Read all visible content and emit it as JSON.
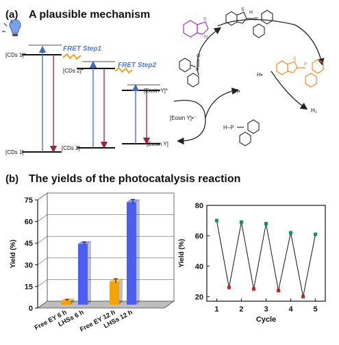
{
  "panel_a": {
    "label": "(a)",
    "title": "A plausible mechanism",
    "levels": {
      "cd1_upper": "[CDs 1]*",
      "cd1_lower": "[CDs 1]",
      "cd2_upper": "[CDs 2]*",
      "cd2_lower": "[CDs 2]",
      "ey_upper": "[Eosin Y]*",
      "ey_lower": "[Eosin Y]"
    },
    "fret1": "FRET Step1",
    "fret2": "FRET Step2",
    "cycle": {
      "eosin_radical": "[Eosin Y]•⁻",
      "h_radical_1": "H•",
      "h_radical_2": "H•",
      "h2": "H₂",
      "phosphine_oxide": "H–P",
      "p_label": "P",
      "o_label": "O",
      "s_label": "S",
      "n_label": "N",
      "h_label": "H"
    },
    "colors": {
      "purple": "#a033cc",
      "orange": "#f08a24",
      "fret_blue": "#4f7bd3"
    }
  },
  "panel_b": {
    "label": "(b)",
    "title": "The yields of the photocatalysis reaction"
  },
  "chart_data": [
    {
      "type": "bar",
      "categories": [
        "Free EY 6 h",
        "LHSs 6 h",
        "Free EY 12 h",
        "LHSs 12 h"
      ],
      "values": [
        2.5,
        42,
        16,
        71
      ],
      "errors": [
        0.5,
        1.0,
        1.5,
        1.5
      ],
      "colors": [
        "#f5a300",
        "#4a5ff0",
        "#f5a300",
        "#4a5ff0"
      ],
      "ylabel": "Yield (%)",
      "ylim": [
        0,
        75
      ],
      "yticks": [
        0,
        15,
        30,
        45,
        60,
        75
      ]
    },
    {
      "type": "line",
      "x": [
        1,
        1.5,
        2,
        2.5,
        3,
        3.5,
        4,
        4.5,
        5
      ],
      "y": [
        70,
        26,
        69,
        25,
        68,
        24,
        62,
        20,
        61
      ],
      "xlabel": "Cycle",
      "ylabel": "Yield (%)",
      "xticks": [
        1,
        2,
        3,
        4,
        5
      ],
      "yticks": [
        20,
        40,
        60,
        80
      ],
      "ylim": [
        17,
        80
      ],
      "xlim": [
        0.6,
        5.4
      ],
      "marker_colors": {
        "high": "#1f8a6a",
        "low": "#b03030"
      }
    }
  ]
}
